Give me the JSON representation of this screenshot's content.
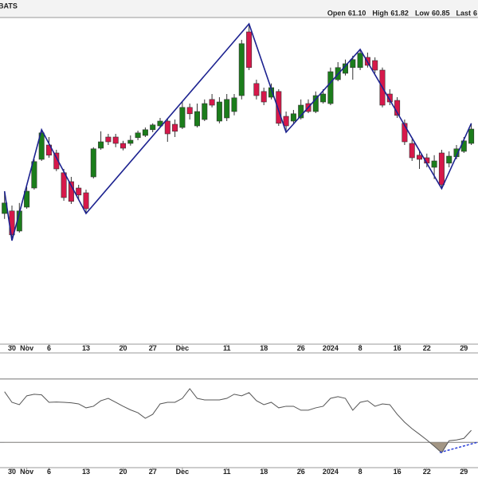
{
  "header": {
    "source": "BATS",
    "quote": [
      {
        "label": "Open",
        "value": "61.10"
      },
      {
        "label": "High",
        "value": "61.82"
      },
      {
        "label": "Low",
        "value": "60.85"
      },
      {
        "label": "Last",
        "value": "6"
      }
    ]
  },
  "chart_data": [
    {
      "type": "candlestick",
      "categories": [
        null,
        "30",
        null,
        "Nov",
        null,
        null,
        "6",
        null,
        null,
        null,
        null,
        "13",
        null,
        null,
        null,
        null,
        "20",
        null,
        null,
        null,
        "27",
        null,
        null,
        null,
        "Dec",
        null,
        null,
        null,
        null,
        null,
        "11",
        null,
        null,
        null,
        null,
        "18",
        null,
        null,
        null,
        null,
        "26",
        null,
        null,
        null,
        "2024",
        null,
        null,
        null,
        "8",
        null,
        null,
        null,
        null,
        "16",
        null,
        null,
        null,
        "22",
        null,
        null,
        null,
        null,
        "29",
        null
      ],
      "open": [
        57.05,
        57.13,
        56.5,
        57.25,
        57.85,
        58.75,
        59.2,
        58.95,
        58.33,
        58.05,
        57.85,
        57.7,
        58.2,
        59.1,
        59.45,
        59.45,
        59.25,
        59.25,
        59.43,
        59.5,
        59.68,
        59.8,
        59.95,
        59.85,
        59.75,
        60.38,
        59.8,
        60.0,
        60.63,
        59.95,
        60.05,
        60.25,
        60.75,
        62.75,
        61.13,
        60.88,
        60.7,
        60.88,
        60.1,
        59.95,
        60.05,
        60.5,
        60.25,
        60.55,
        60.5,
        61.25,
        61.45,
        61.63,
        61.63,
        61.95,
        61.85,
        61.55,
        60.8,
        60.6,
        59.88,
        59.25,
        58.88,
        58.8,
        58.5,
        58.95,
        58.63,
        58.83,
        59.0,
        59.25
      ],
      "high": [
        57.75,
        57.3,
        57.38,
        57.88,
        58.75,
        59.68,
        59.45,
        59.05,
        58.45,
        58.2,
        57.95,
        57.8,
        59.13,
        59.63,
        59.55,
        59.55,
        59.33,
        59.5,
        59.65,
        59.75,
        59.88,
        60.05,
        60.05,
        60.0,
        60.55,
        60.5,
        60.5,
        60.63,
        60.8,
        60.7,
        60.8,
        60.8,
        62.5,
        63.0,
        61.25,
        61.0,
        61.13,
        60.95,
        60.25,
        60.3,
        60.63,
        60.63,
        60.88,
        60.95,
        61.63,
        61.8,
        61.88,
        62.0,
        62.2,
        62.1,
        61.95,
        61.63,
        60.95,
        60.7,
        60.0,
        59.38,
        59.0,
        58.93,
        58.88,
        59.05,
        59.0,
        59.2,
        59.45,
        59.88
      ],
      "low": [
        56.88,
        56.2,
        56.45,
        57.2,
        57.8,
        58.7,
        58.8,
        58.38,
        57.45,
        57.35,
        57.5,
        57.05,
        58.15,
        59.05,
        59.2,
        59.13,
        59.03,
        59.18,
        59.35,
        59.45,
        59.6,
        59.75,
        59.3,
        59.45,
        59.7,
        60.0,
        59.75,
        59.95,
        60.38,
        59.88,
        59.95,
        60.13,
        60.63,
        61.55,
        60.63,
        60.45,
        60.63,
        59.8,
        59.6,
        59.88,
        60.0,
        60.2,
        60.2,
        60.5,
        60.45,
        61.2,
        61.38,
        61.25,
        61.55,
        61.63,
        61.45,
        60.38,
        60.45,
        60.05,
        59.2,
        58.7,
        58.45,
        58.5,
        58.13,
        57.83,
        58.5,
        58.75,
        58.95,
        59.2
      ],
      "close": [
        57.38,
        56.38,
        57.13,
        57.75,
        58.68,
        59.58,
        58.88,
        58.45,
        57.55,
        57.43,
        57.63,
        57.2,
        59.08,
        59.3,
        59.3,
        59.25,
        59.1,
        59.35,
        59.58,
        59.68,
        59.83,
        59.95,
        59.55,
        59.63,
        60.38,
        60.18,
        60.25,
        60.5,
        60.45,
        60.55,
        60.63,
        60.68,
        62.38,
        61.63,
        60.75,
        60.55,
        61.0,
        59.88,
        59.8,
        60.18,
        60.45,
        60.25,
        60.75,
        60.8,
        61.5,
        61.63,
        61.75,
        61.88,
        62.08,
        61.7,
        61.55,
        60.45,
        60.55,
        60.13,
        59.3,
        58.8,
        58.75,
        58.63,
        58.7,
        57.95,
        58.85,
        59.08,
        59.33,
        59.7
      ],
      "up_color": "#1b7d1b",
      "down_color": "#d6184a",
      "zigzag": {
        "color": "#1c2290",
        "values": [
          57.75,
          56.2,
          null,
          null,
          null,
          59.68,
          null,
          null,
          null,
          null,
          null,
          57.05,
          null,
          null,
          null,
          null,
          null,
          null,
          null,
          null,
          null,
          null,
          null,
          null,
          null,
          null,
          null,
          null,
          null,
          null,
          null,
          null,
          null,
          63.0,
          null,
          null,
          null,
          null,
          59.6,
          null,
          null,
          null,
          null,
          null,
          null,
          null,
          null,
          null,
          62.2,
          null,
          null,
          null,
          null,
          null,
          null,
          null,
          null,
          null,
          null,
          57.83,
          null,
          null,
          null,
          59.88
        ]
      },
      "ylim": [
        52.95,
        63.2
      ]
    },
    {
      "type": "line",
      "color": "#555555",
      "values": [
        62.0,
        55.3,
        53.8,
        59.4,
        60.4,
        60.0,
        55.3,
        55.5,
        55.3,
        55.0,
        54.3,
        51.8,
        52.8,
        56.3,
        57.8,
        55.3,
        52.8,
        50.5,
        48.7,
        45.2,
        47.7,
        54.3,
        55.3,
        55.3,
        57.8,
        63.9,
        57.8,
        56.8,
        56.8,
        56.8,
        57.8,
        60.4,
        59.4,
        61.4,
        56.3,
        53.8,
        55.3,
        51.8,
        52.8,
        52.8,
        50.3,
        50.3,
        51.8,
        52.8,
        57.8,
        58.9,
        57.8,
        50.3,
        55.3,
        56.3,
        52.8,
        54.3,
        53.8,
        47.7,
        42.7,
        38.6,
        35.1,
        31.5,
        27.5,
        23.4,
        31.0,
        31.5,
        32.5,
        37.6
      ],
      "levels": [
        30,
        70
      ],
      "level_color": "#777777",
      "fill_color": "#a39684",
      "ylim": [
        15,
        85
      ]
    }
  ]
}
